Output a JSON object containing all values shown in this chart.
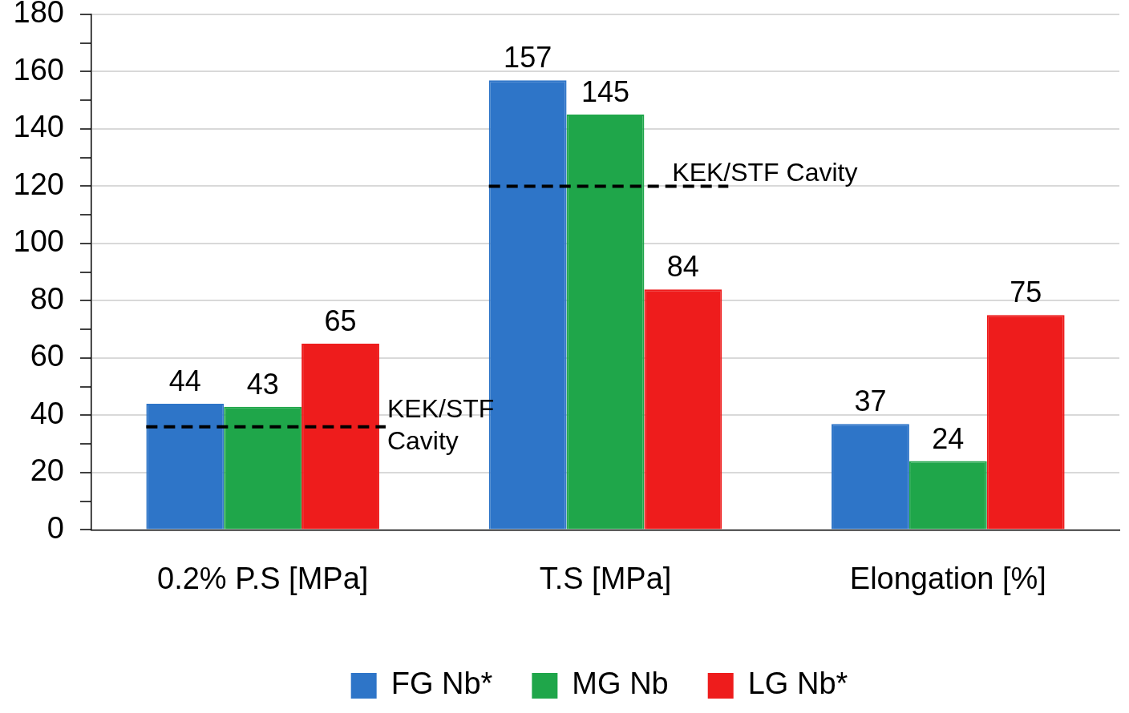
{
  "chart_data": {
    "type": "bar",
    "categories": [
      "0.2% P.S [MPa]",
      "T.S [MPa]",
      "Elongation [%]"
    ],
    "series": [
      {
        "name": "FG Nb*",
        "color": "#2e75c8",
        "values": [
          44,
          157,
          37
        ]
      },
      {
        "name": "MG Nb",
        "color": "#1fa64a",
        "values": [
          43,
          145,
          24
        ]
      },
      {
        "name": "LG Nb*",
        "color": "#ee1c1c",
        "values": [
          65,
          84,
          75
        ]
      }
    ],
    "ylim": [
      0,
      180
    ],
    "yticks": [
      0,
      {
        "value": 10,
        "label": null
      },
      20,
      {
        "value": 30,
        "label": null
      },
      40,
      {
        "value": 50,
        "label": null
      },
      60,
      {
        "value": 70,
        "label": null
      },
      80,
      {
        "value": 90,
        "label": null
      },
      100,
      {
        "value": 110,
        "label": null
      },
      120,
      {
        "value": 130,
        "label": null
      },
      140,
      {
        "value": 150,
        "label": null
      },
      160,
      {
        "value": 170,
        "label": null
      },
      180
    ],
    "ref_lines": [
      {
        "axis": "y",
        "value": 36,
        "label": "KEK/STF Cavity",
        "color": "#000000",
        "line_style": "dashed"
      },
      {
        "axis": "y",
        "value": 120,
        "label": "KEK/STF Cavity",
        "color": "#000000",
        "line_style": "dashed"
      }
    ],
    "data_labels": true,
    "grid": "y",
    "legend": "bottom"
  }
}
